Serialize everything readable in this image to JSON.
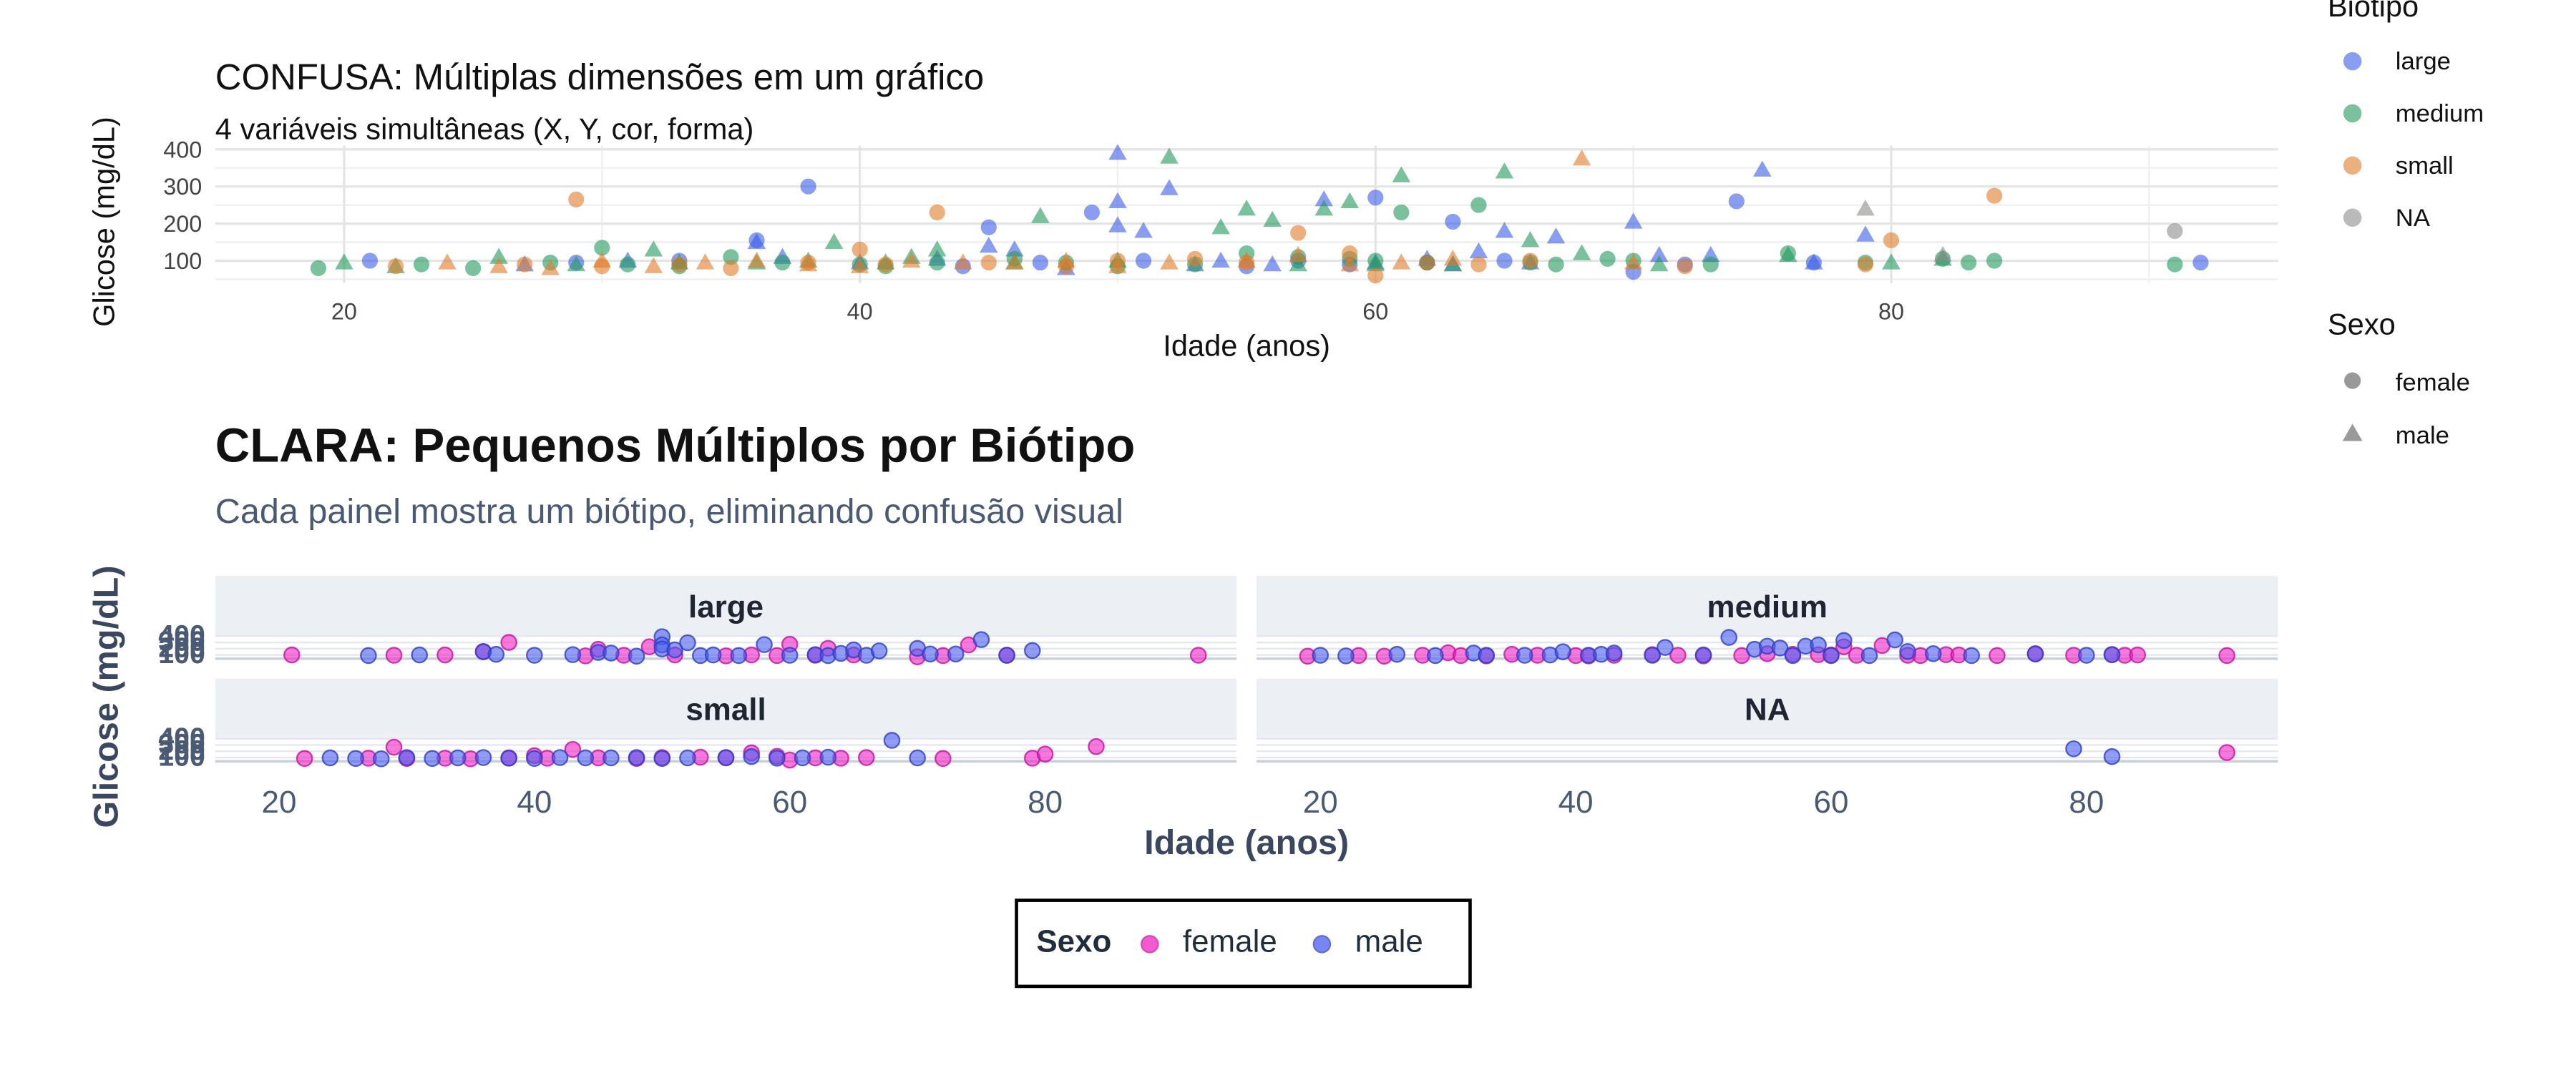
{
  "colors": {
    "large": "#3b5ee6",
    "medium": "#229a5c",
    "small": "#e07b2a",
    "na": "#8c8c8c",
    "female": "#ee22c3",
    "male": "#4a5ef0",
    "strip": "#eceff4",
    "grid": "#e4e4e4"
  },
  "chart_data": [
    {
      "type": "scatter",
      "title": "CONFUSA: Múltiplas dimensões em um gráfico",
      "subtitle": "4 variáveis simultâneas (X, Y, cor, forma)",
      "xlabel": "Idade (anos)",
      "ylabel": "Glicose (mg/dL)",
      "xlim": [
        15,
        95
      ],
      "ylim": [
        40,
        410
      ],
      "x_ticks": [
        20,
        40,
        60,
        80
      ],
      "y_ticks": [
        100,
        200,
        300,
        400
      ],
      "grid": true,
      "legend_biotipo": {
        "title": "Biótipo",
        "entries": [
          "large",
          "medium",
          "small",
          "NA"
        ]
      },
      "legend_sexo": {
        "title": "Sexo",
        "entries": [
          "female",
          "male"
        ]
      },
      "points": {
        "large": {
          "female": [
            [
              21,
              100
            ],
            [
              29,
              95
            ],
            [
              33,
              100
            ],
            [
              36,
              155
            ],
            [
              38,
              300
            ],
            [
              44,
              85
            ],
            [
              45,
              190
            ],
            [
              47,
              95
            ],
            [
              49,
              230
            ],
            [
              51,
              100
            ],
            [
              55,
              85
            ],
            [
              57,
              100
            ],
            [
              59,
              90
            ],
            [
              60,
              270
            ],
            [
              62,
              95
            ],
            [
              63,
              205
            ],
            [
              65,
              100
            ],
            [
              70,
              70
            ],
            [
              72,
              90
            ],
            [
              74,
              260
            ],
            [
              77,
              95
            ],
            [
              92,
              95
            ]
          ],
          "male": [
            [
              27,
              90
            ],
            [
              31,
              100
            ],
            [
              36,
              150
            ],
            [
              37,
              110
            ],
            [
              40,
              95
            ],
            [
              43,
              105
            ],
            [
              45,
              140
            ],
            [
              46,
              130
            ],
            [
              48,
              80
            ],
            [
              50,
              390
            ],
            [
              50,
              260
            ],
            [
              50,
              195
            ],
            [
              51,
              180
            ],
            [
              52,
              295
            ],
            [
              53,
              90
            ],
            [
              54,
              100
            ],
            [
              56,
              90
            ],
            [
              58,
              265
            ],
            [
              60,
              95
            ],
            [
              62,
              105
            ],
            [
              63,
              90
            ],
            [
              64,
              125
            ],
            [
              65,
              180
            ],
            [
              66,
              95
            ],
            [
              67,
              165
            ],
            [
              70,
              205
            ],
            [
              71,
              115
            ],
            [
              73,
              115
            ],
            [
              75,
              345
            ],
            [
              77,
              95
            ],
            [
              79,
              170
            ]
          ]
        },
        "medium": {
          "female": [
            [
              19,
              80
            ],
            [
              23,
              90
            ],
            [
              25,
              80
            ],
            [
              28,
              95
            ],
            [
              30,
              135
            ],
            [
              31,
              90
            ],
            [
              33,
              85
            ],
            [
              35,
              110
            ],
            [
              37,
              95
            ],
            [
              40,
              90
            ],
            [
              41,
              85
            ],
            [
              43,
              95
            ],
            [
              46,
              105
            ],
            [
              48,
              95
            ],
            [
              50,
              85
            ],
            [
              53,
              90
            ],
            [
              55,
              120
            ],
            [
              57,
              110
            ],
            [
              59,
              105
            ],
            [
              60,
              100
            ],
            [
              61,
              230
            ],
            [
              62,
              95
            ],
            [
              64,
              250
            ],
            [
              66,
              95
            ],
            [
              67,
              90
            ],
            [
              69,
              105
            ],
            [
              70,
              100
            ],
            [
              73,
              90
            ],
            [
              76,
              120
            ],
            [
              79,
              95
            ],
            [
              82,
              105
            ],
            [
              83,
              95
            ],
            [
              84,
              100
            ],
            [
              91,
              90
            ]
          ],
          "male": [
            [
              20,
              95
            ],
            [
              22,
              85
            ],
            [
              26,
              110
            ],
            [
              29,
              90
            ],
            [
              32,
              130
            ],
            [
              33,
              95
            ],
            [
              36,
              95
            ],
            [
              38,
              100
            ],
            [
              39,
              150
            ],
            [
              41,
              95
            ],
            [
              42,
              110
            ],
            [
              43,
              130
            ],
            [
              46,
              95
            ],
            [
              47,
              220
            ],
            [
              50,
              100
            ],
            [
              52,
              380
            ],
            [
              54,
              190
            ],
            [
              55,
              240
            ],
            [
              56,
              210
            ],
            [
              57,
              90
            ],
            [
              58,
              240
            ],
            [
              59,
              260
            ],
            [
              60,
              90
            ],
            [
              61,
              330
            ],
            [
              63,
              90
            ],
            [
              65,
              340
            ],
            [
              66,
              155
            ],
            [
              68,
              120
            ],
            [
              71,
              90
            ],
            [
              76,
              115
            ],
            [
              80,
              95
            ],
            [
              82,
              105
            ]
          ]
        },
        "small": {
          "female": [
            [
              22,
              85
            ],
            [
              27,
              90
            ],
            [
              29,
              265
            ],
            [
              30,
              85
            ],
            [
              33,
              90
            ],
            [
              35,
              80
            ],
            [
              38,
              95
            ],
            [
              40,
              130
            ],
            [
              41,
              90
            ],
            [
              43,
              230
            ],
            [
              45,
              95
            ],
            [
              48,
              85
            ],
            [
              50,
              100
            ],
            [
              53,
              105
            ],
            [
              55,
              95
            ],
            [
              57,
              175
            ],
            [
              59,
              120
            ],
            [
              60,
              60
            ],
            [
              62,
              95
            ],
            [
              64,
              90
            ],
            [
              66,
              100
            ],
            [
              72,
              85
            ],
            [
              79,
              90
            ],
            [
              80,
              155
            ],
            [
              84,
              275
            ]
          ],
          "male": [
            [
              24,
              95
            ],
            [
              26,
              85
            ],
            [
              28,
              80
            ],
            [
              30,
              100
            ],
            [
              32,
              85
            ],
            [
              34,
              95
            ],
            [
              36,
              100
            ],
            [
              38,
              90
            ],
            [
              40,
              85
            ],
            [
              42,
              100
            ],
            [
              44,
              95
            ],
            [
              46,
              95
            ],
            [
              48,
              100
            ],
            [
              50,
              85
            ],
            [
              52,
              95
            ],
            [
              55,
              100
            ],
            [
              57,
              115
            ],
            [
              59,
              90
            ],
            [
              61,
              95
            ],
            [
              63,
              105
            ],
            [
              68,
              375
            ],
            [
              70,
              95
            ]
          ]
        },
        "na": {
          "female": [
            [
              91,
              180
            ]
          ],
          "male": [
            [
              79,
              240
            ],
            [
              82,
              115
            ]
          ]
        }
      }
    },
    {
      "type": "scatter",
      "title": "CLARA: Pequenos Múltiplos por Biótipo",
      "subtitle": "Cada painel mostra um biótipo, eliminando confusão visual",
      "xlabel": "Idade (anos)",
      "ylabel": "Glicose (mg/dL)",
      "xlim": [
        15,
        95
      ],
      "ylim": [
        40,
        410
      ],
      "x_ticks": [
        20,
        40,
        60,
        80
      ],
      "y_ticks": [
        100,
        200,
        300,
        400
      ],
      "facets": [
        "large",
        "medium",
        "small",
        "NA"
      ],
      "legend": {
        "title": "Sexo",
        "entries": [
          "female",
          "male"
        ],
        "position": "bottom"
      }
    }
  ],
  "ui": {
    "top_title": "CONFUSA: Múltiplas dimensões em um gráfico",
    "top_subtitle": "4 variáveis simultâneas (X, Y, cor, forma)",
    "bottom_title": "CLARA: Pequenos Múltiplos por Biótipo",
    "bottom_subtitle": "Cada painel mostra um biótipo, eliminando confusão visual",
    "legend_sexo_title": "Sexo",
    "legend_female": "female",
    "legend_male": "male"
  }
}
